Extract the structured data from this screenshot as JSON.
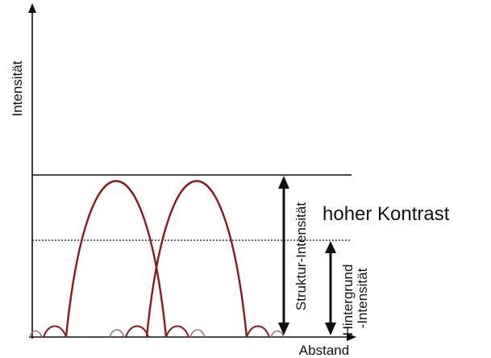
{
  "diagram": {
    "y_axis_label": "Intensität",
    "x_axis_label": "Abstand",
    "contrast_label": "hoher Kontrast",
    "structure_intensity_label": "Struktur-Intensität",
    "background_intensity_label_line1": "Hintergrund",
    "background_intensity_label_line2": "-Intensität"
  },
  "colors": {
    "curve": "#8b1a1a",
    "axis": "#111111",
    "side_lobe": "#b07070"
  }
}
